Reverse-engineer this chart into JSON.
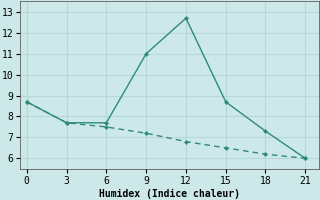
{
  "xlabel": "Humidex (Indice chaleur)",
  "line1_x": [
    0,
    3,
    6,
    9,
    12,
    15,
    18,
    21
  ],
  "line1_y": [
    8.7,
    7.7,
    7.7,
    11.0,
    12.7,
    8.7,
    7.3,
    6.0
  ],
  "line2_x": [
    0,
    3,
    6,
    9,
    12,
    15,
    18,
    21
  ],
  "line2_y": [
    8.7,
    7.7,
    7.5,
    7.2,
    6.8,
    6.5,
    6.2,
    6.0
  ],
  "line_color": "#2e8b7a",
  "background_color": "#cce8e8",
  "grid_color": "#b8d8d8",
  "xlim": [
    -0.5,
    22
  ],
  "ylim": [
    5.5,
    13.5
  ],
  "xticks": [
    0,
    3,
    6,
    9,
    12,
    15,
    18,
    21
  ],
  "yticks": [
    6,
    7,
    8,
    9,
    10,
    11,
    12,
    13
  ]
}
